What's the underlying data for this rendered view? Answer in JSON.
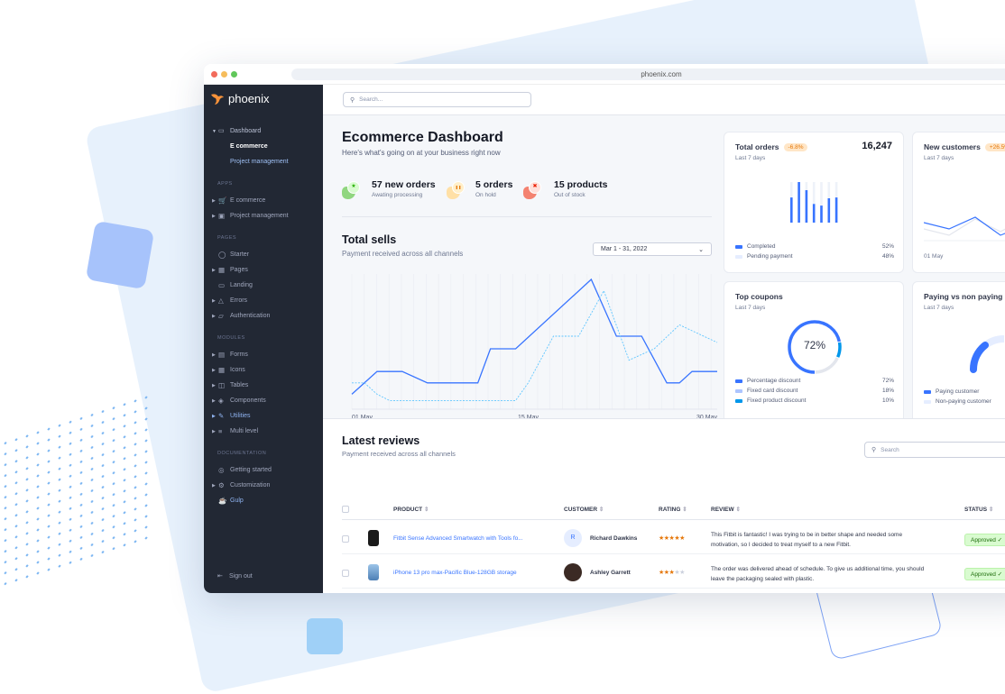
{
  "browser": {
    "url": "phoenix.com"
  },
  "sidebar": {
    "brand": "phoenix",
    "dashboard": {
      "label": "Dashboard",
      "children": [
        "E commerce",
        "Project management"
      ]
    },
    "sections": [
      {
        "heading": "APPS",
        "items": [
          {
            "label": "E commerce",
            "icon": "cart-icon",
            "caret": true
          },
          {
            "label": "Project management",
            "icon": "clipboard-icon",
            "caret": true
          }
        ]
      },
      {
        "heading": "PAGES",
        "items": [
          {
            "label": "Starter",
            "icon": "compass-icon",
            "caret": false
          },
          {
            "label": "Pages",
            "icon": "layout-icon",
            "caret": true
          },
          {
            "label": "Landing",
            "icon": "monitor-icon",
            "caret": false
          },
          {
            "label": "Errors",
            "icon": "alert-triangle-icon",
            "caret": true
          },
          {
            "label": "Authentication",
            "icon": "lock-icon",
            "caret": true
          }
        ]
      },
      {
        "heading": "MODULES",
        "items": [
          {
            "label": "Forms",
            "icon": "file-text-icon",
            "caret": true
          },
          {
            "label": "Icons",
            "icon": "grid-icon",
            "caret": true
          },
          {
            "label": "Tables",
            "icon": "columns-icon",
            "caret": true
          },
          {
            "label": "Components",
            "icon": "package-icon",
            "caret": true
          },
          {
            "label": "Utilities",
            "icon": "tool-icon",
            "caret": true
          },
          {
            "label": "Multi level",
            "icon": "layers-icon",
            "caret": true
          }
        ]
      },
      {
        "heading": "DOCUMENTATION",
        "items": [
          {
            "label": "Getting started",
            "icon": "life-buoy-icon",
            "caret": false
          },
          {
            "label": "Customization",
            "icon": "settings-icon",
            "caret": true
          },
          {
            "label": "Gulp",
            "icon": "gulp-icon",
            "caret": false
          }
        ]
      }
    ],
    "signout": "Sign out"
  },
  "topbar": {
    "search_placeholder": "Search..."
  },
  "header": {
    "title": "Ecommerce Dashboard",
    "subtitle": "Here's what's going on at your business right now"
  },
  "stats": [
    {
      "value": "57 new orders",
      "label": "Awating processing",
      "icon": "star-icon",
      "color": "#25b003"
    },
    {
      "value": "5 orders",
      "label": "On hold",
      "icon": "pause-icon",
      "color": "#e5780b"
    },
    {
      "value": "15 products",
      "label": "Out of stock",
      "icon": "x-icon",
      "color": "#ec1f00"
    }
  ],
  "total_sells": {
    "title": "Total sells",
    "subtitle": "Payment received across all channels",
    "date_range": "Mar 1 - 31, 2022"
  },
  "chart_data": [
    {
      "type": "line",
      "x_ticks": [
        "01 May",
        "15 May",
        "30 May"
      ],
      "x_range": [
        1,
        30
      ],
      "grid": "vertical",
      "series": [
        {
          "style": "solid",
          "color": "#3874ff",
          "points": [
            [
              1,
              9
            ],
            [
              3,
              27
            ],
            [
              5,
              27
            ],
            [
              7,
              18
            ],
            [
              11,
              18
            ],
            [
              12,
              45
            ],
            [
              14,
              45
            ],
            [
              20,
              100
            ],
            [
              22,
              55
            ],
            [
              24,
              55
            ],
            [
              26,
              18
            ],
            [
              27,
              18
            ],
            [
              28,
              27
            ],
            [
              30,
              27
            ]
          ]
        },
        {
          "style": "dashed",
          "color": "#60c6ff",
          "points": [
            [
              1,
              18
            ],
            [
              2,
              18
            ],
            [
              3,
              9
            ],
            [
              4,
              4
            ],
            [
              14,
              4
            ],
            [
              15,
              18
            ],
            [
              17,
              55
            ],
            [
              19,
              55
            ],
            [
              21,
              91
            ],
            [
              23,
              36
            ],
            [
              25,
              45
            ],
            [
              27,
              64
            ],
            [
              30,
              50
            ]
          ]
        }
      ]
    },
    {
      "type": "bar",
      "name": "total-orders-bars",
      "values": [
        62,
        100,
        80,
        46,
        42,
        60,
        62
      ],
      "max": 100
    }
  ],
  "cards": {
    "total_orders": {
      "title": "Total orders",
      "badge": "-6.8%",
      "value": "16,247",
      "period": "Last 7 days",
      "legend": [
        {
          "label": "Completed",
          "value": "52%",
          "color": "#3874ff"
        },
        {
          "label": "Pending payment",
          "value": "48%",
          "color": "#e5edff"
        }
      ]
    },
    "new_customers": {
      "title": "New customers",
      "badge": "+26.5%",
      "period": "Last 7 days",
      "x_label": "01 May"
    },
    "top_coupons": {
      "title": "Top coupons",
      "period": "Last 7 days",
      "center": "72%",
      "legend": [
        {
          "label": "Percentage discount",
          "value": "72%",
          "color": "#3874ff",
          "pct": 72
        },
        {
          "label": "Fixed card discount",
          "value": "18%",
          "color": "#adc5ff",
          "pct": 18
        },
        {
          "label": "Fixed product discount",
          "value": "10%",
          "color": "#0097eb",
          "pct": 10
        }
      ]
    },
    "paying": {
      "title": "Paying vs non paying",
      "period": "Last 7 days",
      "legend": [
        {
          "label": "Paying customer",
          "color": "#3874ff"
        },
        {
          "label": "Non-paying customer",
          "color": "#e5edff"
        }
      ]
    }
  },
  "reviews": {
    "title": "Latest reviews",
    "subtitle": "Payment received across all channels",
    "search_placeholder": "Search",
    "columns": [
      "PRODUCT",
      "CUSTOMER",
      "RATING",
      "REVIEW",
      "STATUS"
    ],
    "rows": [
      {
        "product": "Fitbit Sense Advanced Smartwatch with Tools fo...",
        "customer": "Richard Dawkins",
        "avatar": "R",
        "rating": 5,
        "stars": "★★★★★",
        "review_1": "This Fitbit is fantastic! I was trying to be in better shape and needed some",
        "review_2": "motivation, so I decided to treat myself to a new Fitbit.",
        "status": "Approved ✓"
      },
      {
        "product": "iPhone 13 pro max-Pacific Blue-128GB storage",
        "customer": "Ashley Garrett",
        "avatar": "",
        "rating": 3,
        "stars": "★★★",
        "stars_empty": "★★",
        "review_1": "The order was delivered ahead of schedule. To give us additional time, you should",
        "review_2": "leave the packaging sealed with plastic.",
        "status": "Approved ✓"
      }
    ]
  }
}
